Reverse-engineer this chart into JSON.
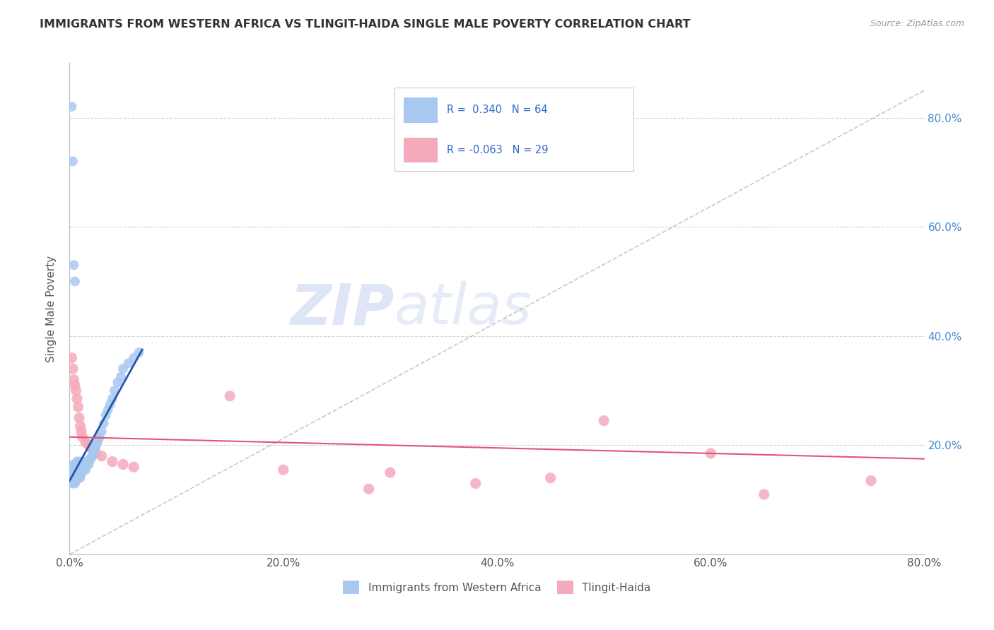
{
  "title": "IMMIGRANTS FROM WESTERN AFRICA VS TLINGIT-HAIDA SINGLE MALE POVERTY CORRELATION CHART",
  "source": "Source: ZipAtlas.com",
  "ylabel": "Single Male Poverty",
  "xlim": [
    0.0,
    0.8
  ],
  "ylim": [
    0.0,
    0.9
  ],
  "blue_color": "#A8C8F0",
  "pink_color": "#F5AABB",
  "blue_line_color": "#2255AA",
  "pink_line_color": "#E05578",
  "diag_color": "#BBBBBB",
  "grid_color": "#CCCCDD",
  "watermark_zip": "#C8D4F0",
  "watermark_atlas": "#C0CCE8",
  "legend_box_color": "#EEEEEE",
  "legend_text_color": "#3366CC",
  "blue_scatter_x": [
    0.002,
    0.002,
    0.003,
    0.003,
    0.003,
    0.004,
    0.004,
    0.004,
    0.005,
    0.005,
    0.005,
    0.006,
    0.006,
    0.006,
    0.007,
    0.007,
    0.007,
    0.008,
    0.008,
    0.008,
    0.009,
    0.009,
    0.01,
    0.01,
    0.01,
    0.011,
    0.011,
    0.012,
    0.012,
    0.013,
    0.013,
    0.014,
    0.015,
    0.015,
    0.016,
    0.017,
    0.018,
    0.019,
    0.02,
    0.021,
    0.022,
    0.023,
    0.024,
    0.025,
    0.026,
    0.027,
    0.028,
    0.03,
    0.032,
    0.034,
    0.036,
    0.038,
    0.04,
    0.042,
    0.045,
    0.048,
    0.05,
    0.055,
    0.06,
    0.065,
    0.002,
    0.003,
    0.004,
    0.005
  ],
  "blue_scatter_y": [
    0.14,
    0.155,
    0.13,
    0.145,
    0.16,
    0.135,
    0.15,
    0.165,
    0.13,
    0.145,
    0.16,
    0.135,
    0.15,
    0.165,
    0.14,
    0.155,
    0.17,
    0.14,
    0.155,
    0.17,
    0.145,
    0.16,
    0.14,
    0.155,
    0.17,
    0.148,
    0.163,
    0.152,
    0.167,
    0.155,
    0.17,
    0.16,
    0.155,
    0.17,
    0.165,
    0.17,
    0.165,
    0.175,
    0.175,
    0.18,
    0.185,
    0.19,
    0.195,
    0.2,
    0.205,
    0.21,
    0.215,
    0.225,
    0.24,
    0.255,
    0.265,
    0.275,
    0.285,
    0.3,
    0.315,
    0.325,
    0.34,
    0.35,
    0.36,
    0.37,
    0.82,
    0.72,
    0.53,
    0.5
  ],
  "pink_scatter_x": [
    0.002,
    0.003,
    0.004,
    0.005,
    0.006,
    0.007,
    0.008,
    0.009,
    0.01,
    0.011,
    0.012,
    0.015,
    0.018,
    0.02,
    0.025,
    0.03,
    0.04,
    0.05,
    0.06,
    0.15,
    0.2,
    0.28,
    0.3,
    0.38,
    0.45,
    0.5,
    0.6,
    0.65,
    0.75
  ],
  "pink_scatter_y": [
    0.36,
    0.34,
    0.32,
    0.31,
    0.3,
    0.285,
    0.27,
    0.25,
    0.235,
    0.225,
    0.215,
    0.205,
    0.2,
    0.195,
    0.185,
    0.18,
    0.17,
    0.165,
    0.16,
    0.29,
    0.155,
    0.12,
    0.15,
    0.13,
    0.14,
    0.245,
    0.185,
    0.11,
    0.135
  ]
}
